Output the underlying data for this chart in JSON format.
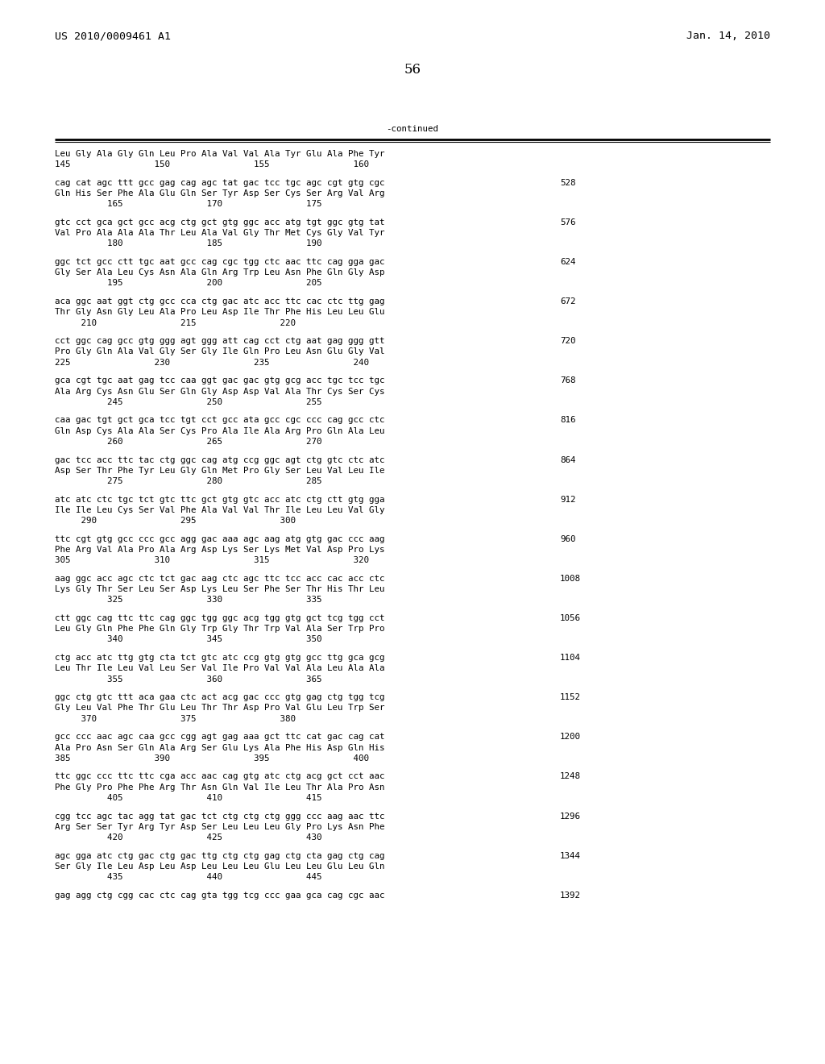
{
  "header_left": "US 2010/0009461 A1",
  "header_right": "Jan. 14, 2010",
  "page_number": "56",
  "continued_label": "-continued",
  "background_color": "#ffffff",
  "text_color": "#000000",
  "blocks": [
    {
      "dna": "Leu Gly Ala Gly Gln Leu Pro Ala Val Val Ala Tyr Glu Ala Phe Tyr",
      "aa": null,
      "nums": "145                150                155                160",
      "bp": null
    },
    {
      "dna": "cag cat agc ttt gcc gag cag agc tat gac tcc tgc agc cgt gtg cgc",
      "aa": "Gln His Ser Phe Ala Glu Gln Ser Tyr Asp Ser Cys Ser Arg Val Arg",
      "nums": "          165                170                175",
      "bp": "528"
    },
    {
      "dna": "gtc cct gca gct gcc acg ctg gct gtg ggc acc atg tgt ggc gtg tat",
      "aa": "Val Pro Ala Ala Ala Thr Leu Ala Val Gly Thr Met Cys Gly Val Tyr",
      "nums": "          180                185                190",
      "bp": "576"
    },
    {
      "dna": "ggc tct gcc ctt tgc aat gcc cag cgc tgg ctc aac ttc cag gga gac",
      "aa": "Gly Ser Ala Leu Cys Asn Ala Gln Arg Trp Leu Asn Phe Gln Gly Asp",
      "nums": "          195                200                205",
      "bp": "624"
    },
    {
      "dna": "aca ggc aat ggt ctg gcc cca ctg gac atc acc ttc cac ctc ttg gag",
      "aa": "Thr Gly Asn Gly Leu Ala Pro Leu Asp Ile Thr Phe His Leu Leu Glu",
      "nums": "     210                215                220",
      "bp": "672"
    },
    {
      "dna": "cct ggc cag gcc gtg ggg agt ggg att cag cct ctg aat gag ggg gtt",
      "aa": "Pro Gly Gln Ala Val Gly Ser Gly Ile Gln Pro Leu Asn Glu Gly Val",
      "nums": "225                230                235                240",
      "bp": "720"
    },
    {
      "dna": "gca cgt tgc aat gag tcc caa ggt gac gac gtg gcg acc tgc tcc tgc",
      "aa": "Ala Arg Cys Asn Glu Ser Gln Gly Asp Asp Val Ala Thr Cys Ser Cys",
      "nums": "          245                250                255",
      "bp": "768"
    },
    {
      "dna": "caa gac tgt gct gca tcc tgt cct gcc ata gcc cgc ccc cag gcc ctc",
      "aa": "Gln Asp Cys Ala Ala Ser Cys Pro Ala Ile Ala Arg Pro Gln Ala Leu",
      "nums": "          260                265                270",
      "bp": "816"
    },
    {
      "dna": "gac tcc acc ttc tac ctg ggc cag atg ccg ggc agt ctg gtc ctc atc",
      "aa": "Asp Ser Thr Phe Tyr Leu Gly Gln Met Pro Gly Ser Leu Val Leu Ile",
      "nums": "          275                280                285",
      "bp": "864"
    },
    {
      "dna": "atc atc ctc tgc tct gtc ttc gct gtg gtc acc atc ctg ctt gtg gga",
      "aa": "Ile Ile Leu Cys Ser Val Phe Ala Val Val Thr Ile Leu Leu Val Gly",
      "nums": "     290                295                300",
      "bp": "912"
    },
    {
      "dna": "ttc cgt gtg gcc ccc gcc agg gac aaa agc aag atg gtg gac ccc aag",
      "aa": "Phe Arg Val Ala Pro Ala Arg Asp Lys Ser Lys Met Val Asp Pro Lys",
      "nums": "305                310                315                320",
      "bp": "960"
    },
    {
      "dna": "aag ggc acc agc ctc tct gac aag ctc agc ttc tcc acc cac acc ctc",
      "aa": "Lys Gly Thr Ser Leu Ser Asp Lys Leu Ser Phe Ser Thr His Thr Leu",
      "nums": "          325                330                335",
      "bp": "1008"
    },
    {
      "dna": "ctt ggc cag ttc ttc cag ggc tgg ggc acg tgg gtg gct tcg tgg cct",
      "aa": "Leu Gly Gln Phe Phe Gln Gly Trp Gly Thr Trp Val Ala Ser Trp Pro",
      "nums": "          340                345                350",
      "bp": "1056"
    },
    {
      "dna": "ctg acc atc ttg gtg cta tct gtc atc ccg gtg gtg gcc ttg gca gcg",
      "aa": "Leu Thr Ile Leu Val Leu Ser Val Ile Pro Val Val Ala Leu Ala Ala",
      "nums": "          355                360                365",
      "bp": "1104"
    },
    {
      "dna": "ggc ctg gtc ttt aca gaa ctc act acg gac ccc gtg gag ctg tgg tcg",
      "aa": "Gly Leu Val Phe Thr Glu Leu Thr Thr Asp Pro Val Glu Leu Trp Ser",
      "nums": "     370                375                380",
      "bp": "1152"
    },
    {
      "dna": "gcc ccc aac agc caa gcc cgg agt gag aaa gct ttc cat gac cag cat",
      "aa": "Ala Pro Asn Ser Gln Ala Arg Ser Glu Lys Ala Phe His Asp Gln His",
      "nums": "385                390                395                400",
      "bp": "1200"
    },
    {
      "dna": "ttc ggc ccc ttc ttc cga acc aac cag gtg atc ctg acg gct cct aac",
      "aa": "Phe Gly Pro Phe Phe Arg Thr Asn Gln Val Ile Leu Thr Ala Pro Asn",
      "nums": "          405                410                415",
      "bp": "1248"
    },
    {
      "dna": "cgg tcc agc tac agg tat gac tct ctg ctg ctg ggg ccc aag aac ttc",
      "aa": "Arg Ser Ser Tyr Arg Tyr Asp Ser Leu Leu Leu Gly Pro Lys Asn Phe",
      "nums": "          420                425                430",
      "bp": "1296"
    },
    {
      "dna": "agc gga atc ctg gac ctg gac ttg ctg ctg gag ctg cta gag ctg cag",
      "aa": "Ser Gly Ile Leu Asp Leu Asp Leu Leu Leu Glu Leu Leu Glu Leu Gln",
      "nums": "          435                440                445",
      "bp": "1344"
    },
    {
      "dna": "gag agg ctg cgg cac ctc cag gta tgg tcg ccc gaa gca cag cgc aac",
      "aa": null,
      "nums": null,
      "bp": "1392"
    }
  ]
}
